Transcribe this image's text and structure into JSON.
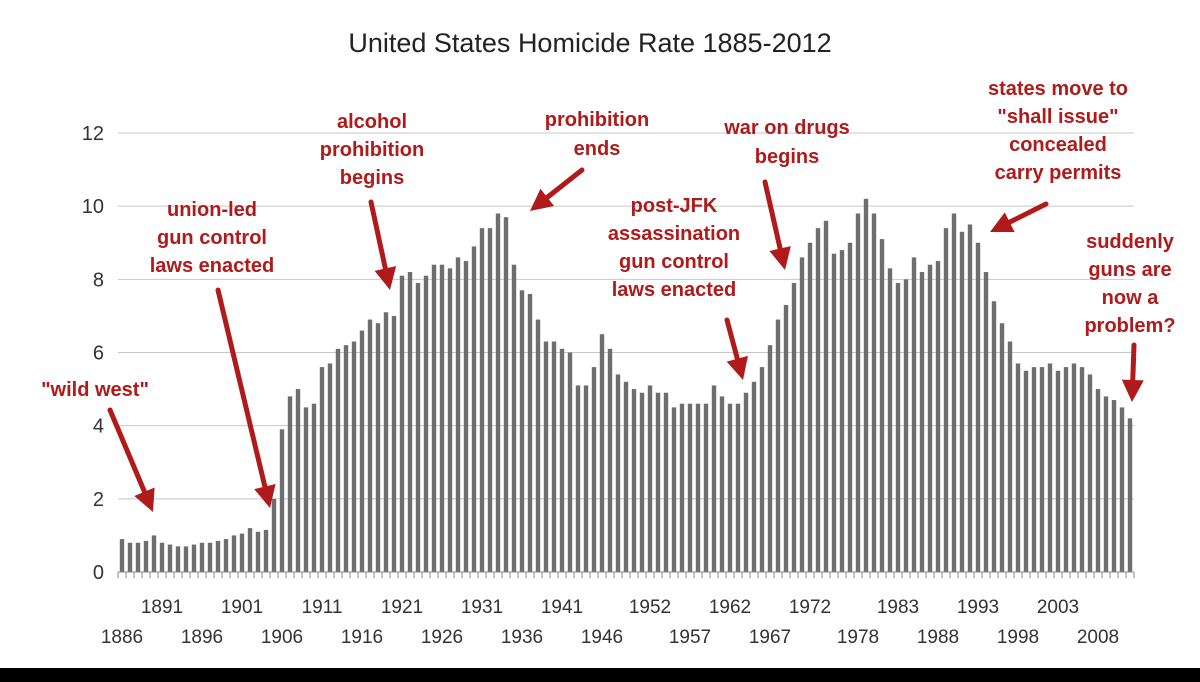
{
  "chart_data": {
    "type": "bar",
    "title": "United States Homicide Rate 1885-2012",
    "xlabel": "",
    "ylabel": "",
    "ylim": [
      0,
      12
    ],
    "yticks": [
      0,
      2,
      4,
      6,
      8,
      10,
      12
    ],
    "grid": true,
    "x_start": 1886,
    "x_tick_labels_upper": [
      "1891",
      "1901",
      "1911",
      "1921",
      "1931",
      "1941",
      "1952",
      "1962",
      "1972",
      "1983",
      "1993",
      "2003"
    ],
    "x_tick_labels_lower": [
      "1886",
      "1896",
      "1906",
      "1916",
      "1926",
      "1936",
      "1946",
      "1957",
      "1967",
      "1978",
      "1988",
      "1998",
      "2008"
    ],
    "bar_color": "#6e6e6e",
    "annotation_color": "#b01a1a",
    "values": [
      0.9,
      0.8,
      0.8,
      0.85,
      1.0,
      0.8,
      0.75,
      0.7,
      0.7,
      0.75,
      0.8,
      0.8,
      0.85,
      0.9,
      1.0,
      1.05,
      1.2,
      1.1,
      1.15,
      2.0,
      3.9,
      4.8,
      5.0,
      4.5,
      4.6,
      5.6,
      5.7,
      6.1,
      6.2,
      6.3,
      6.6,
      6.9,
      6.8,
      7.1,
      7.0,
      8.1,
      8.2,
      7.9,
      8.1,
      8.4,
      8.4,
      8.3,
      8.6,
      8.5,
      8.9,
      9.4,
      9.4,
      9.8,
      9.7,
      8.4,
      7.7,
      7.6,
      6.9,
      6.3,
      6.3,
      6.1,
      6.0,
      5.1,
      5.1,
      5.6,
      6.5,
      6.1,
      5.4,
      5.2,
      5.0,
      4.9,
      5.1,
      4.9,
      4.9,
      4.5,
      4.6,
      4.6,
      4.6,
      4.6,
      5.1,
      4.8,
      4.6,
      4.6,
      4.9,
      5.2,
      5.6,
      6.2,
      6.9,
      7.3,
      7.9,
      8.6,
      9.0,
      9.4,
      9.6,
      8.7,
      8.8,
      9.0,
      9.8,
      10.2,
      9.8,
      9.1,
      8.3,
      7.9,
      8.0,
      8.6,
      8.2,
      8.4,
      8.5,
      9.4,
      9.8,
      9.3,
      9.5,
      9.0,
      8.2,
      7.4,
      6.8,
      6.3,
      5.7,
      5.5,
      5.6,
      5.6,
      5.7,
      5.5,
      5.6,
      5.7,
      5.6,
      5.4,
      5.0,
      4.8,
      4.7,
      4.5,
      4.2
    ]
  },
  "annotations": [
    {
      "lines": [
        "\"wild west\""
      ]
    },
    {
      "lines": [
        "union-led",
        "gun control",
        "laws enacted"
      ]
    },
    {
      "lines": [
        "alcohol",
        "prohibition",
        "begins"
      ]
    },
    {
      "lines": [
        "prohibition",
        "ends"
      ]
    },
    {
      "lines": [
        "war on drugs",
        "begins"
      ]
    },
    {
      "lines": [
        "post-JFK",
        "assassination",
        "gun control",
        "laws enacted"
      ]
    },
    {
      "lines": [
        "states move to",
        "\"shall issue\"",
        "concealed",
        "carry permits"
      ]
    },
    {
      "lines": [
        "suddenly",
        "guns are",
        "now a",
        "problem?"
      ]
    }
  ]
}
